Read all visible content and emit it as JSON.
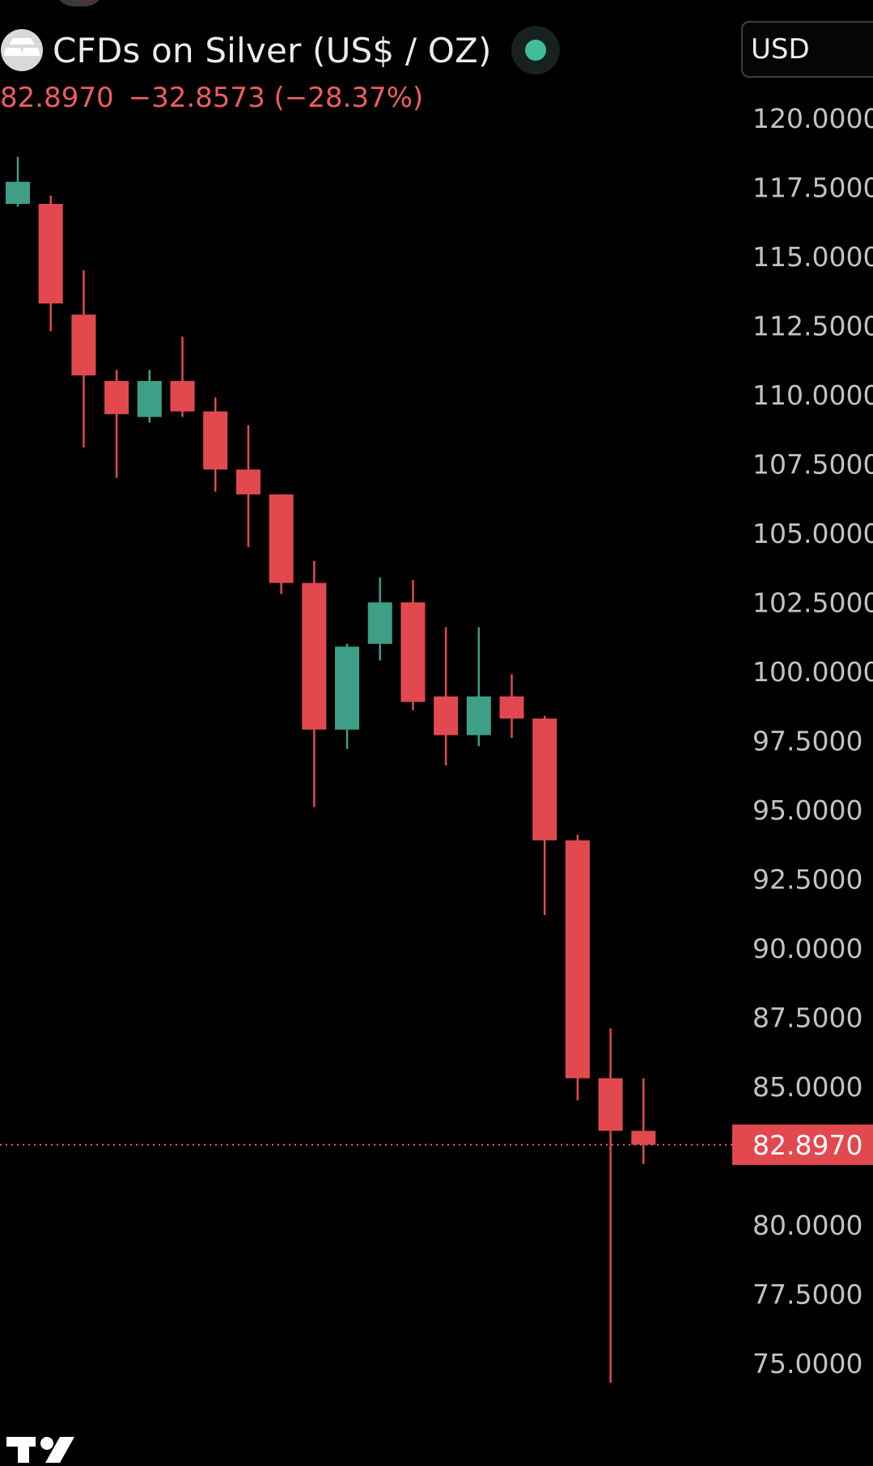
{
  "header": {
    "title": "CFDs on Silver (US$ / OZ)",
    "last_price": "82.8970",
    "change": "−32.8573",
    "change_pct": "(−28.37%)",
    "symbol_icon": "silver-bars-icon",
    "status_icon": "market-open-dot-icon",
    "currency": "USD"
  },
  "colors": {
    "background": "#000000",
    "up": "#3f9e86",
    "down": "#e2494f",
    "price_text": "#eb5d61",
    "axis_text": "#c2c2c2",
    "status_dot": "#42bd9a"
  },
  "chart_data": {
    "type": "candlestick",
    "title": "CFDs on Silver (US$ / OZ)",
    "ylim": [
      73.9,
      121.5
    ],
    "y_ticks": [
      "120.0000",
      "117.5000",
      "115.0000",
      "112.5000",
      "110.0000",
      "107.5000",
      "105.0000",
      "102.5000",
      "100.0000",
      "97.5000",
      "95.0000",
      "92.5000",
      "90.0000",
      "87.5000",
      "85.0000",
      "80.0000",
      "77.5000",
      "75.0000"
    ],
    "grid": false,
    "current_price": 82.897,
    "current_price_label": "82.8970",
    "candles": [
      {
        "open": 116.9,
        "high": 118.6,
        "low": 116.8,
        "close": 117.7
      },
      {
        "open": 116.9,
        "high": 117.2,
        "low": 112.3,
        "close": 113.3
      },
      {
        "open": 112.9,
        "high": 114.5,
        "low": 108.1,
        "close": 110.7
      },
      {
        "open": 110.5,
        "high": 110.9,
        "low": 107.0,
        "close": 109.3
      },
      {
        "open": 109.2,
        "high": 110.9,
        "low": 109.0,
        "close": 110.5
      },
      {
        "open": 110.5,
        "high": 112.1,
        "low": 109.2,
        "close": 109.4
      },
      {
        "open": 109.4,
        "high": 109.9,
        "low": 106.5,
        "close": 107.3
      },
      {
        "open": 107.3,
        "high": 108.9,
        "low": 104.5,
        "close": 106.4
      },
      {
        "open": 106.4,
        "high": 106.4,
        "low": 102.8,
        "close": 103.2
      },
      {
        "open": 103.2,
        "high": 104.0,
        "low": 95.1,
        "close": 97.9
      },
      {
        "open": 97.9,
        "high": 101.0,
        "low": 97.2,
        "close": 100.9
      },
      {
        "open": 101.0,
        "high": 103.4,
        "low": 100.4,
        "close": 102.5
      },
      {
        "open": 102.5,
        "high": 103.3,
        "low": 98.6,
        "close": 98.9
      },
      {
        "open": 99.1,
        "high": 101.6,
        "low": 96.6,
        "close": 97.7
      },
      {
        "open": 97.7,
        "high": 101.6,
        "low": 97.3,
        "close": 99.1
      },
      {
        "open": 99.1,
        "high": 99.9,
        "low": 97.6,
        "close": 98.3
      },
      {
        "open": 98.3,
        "high": 98.4,
        "low": 91.2,
        "close": 93.9
      },
      {
        "open": 93.9,
        "high": 94.1,
        "low": 84.5,
        "close": 85.3
      },
      {
        "open": 85.3,
        "high": 87.1,
        "low": 74.3,
        "close": 83.4
      },
      {
        "open": 83.4,
        "high": 85.3,
        "low": 82.2,
        "close": 82.9
      }
    ]
  },
  "watermark_icon": "tradingview-logo-icon"
}
